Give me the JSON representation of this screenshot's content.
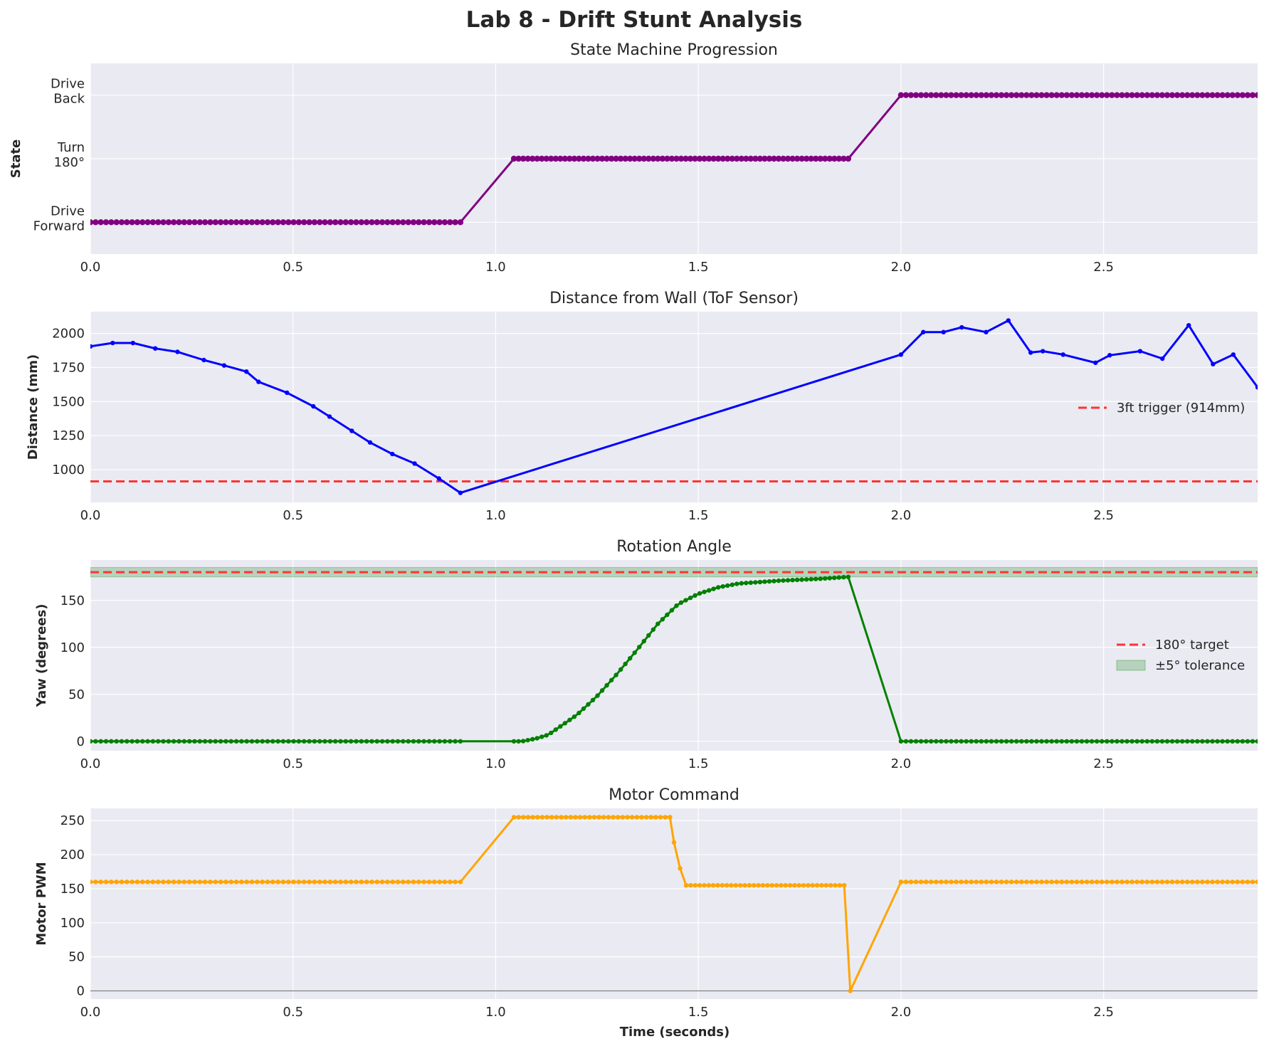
{
  "figure": {
    "title": "Lab 8 - Drift Stunt Analysis",
    "xlabel": "Time (seconds)"
  },
  "chart_data": [
    {
      "type": "line",
      "title": "State Machine Progression",
      "xlabel": "",
      "ylabel": "State",
      "xlim": [
        0,
        2.88
      ],
      "ylim": [
        -0.5,
        2.5
      ],
      "xticks": [
        0.0,
        0.5,
        1.0,
        1.5,
        2.0,
        2.5
      ],
      "xtick_labels": [
        "0.0",
        "0.5",
        "1.0",
        "1.5",
        "2.0",
        "2.5"
      ],
      "yticks": [
        0,
        1,
        2
      ],
      "ytick_labels": [
        [
          "Drive",
          "Forward"
        ],
        [
          "Turn",
          "180°"
        ],
        [
          "Drive",
          "Back"
        ]
      ],
      "grid": true,
      "color": "#800080",
      "series": [
        {
          "segments": [
            {
              "x_start": 0.0,
              "x_end": 0.913,
              "n": 72,
              "y": 0
            },
            {
              "x_start": 1.045,
              "x_end": 1.87,
              "n": 73,
              "y": 1
            },
            {
              "x_start": 2.0,
              "x_end": 2.88,
              "n": 72,
              "y": 2
            }
          ]
        }
      ]
    },
    {
      "type": "line",
      "title": "Distance from Wall (ToF Sensor)",
      "xlabel": "",
      "ylabel": "Distance (mm)",
      "xlim": [
        0,
        2.88
      ],
      "ylim": [
        760,
        2160
      ],
      "xticks": [
        0.0,
        0.5,
        1.0,
        1.5,
        2.0,
        2.5
      ],
      "xtick_labels": [
        "0.0",
        "0.5",
        "1.0",
        "1.5",
        "2.0",
        "2.5"
      ],
      "yticks": [
        1000,
        1250,
        1500,
        1750,
        2000
      ],
      "ytick_labels": [
        "1000",
        "1250",
        "1500",
        "1750",
        "2000"
      ],
      "grid": true,
      "legend": "center-right",
      "series": [
        {
          "color": "#0000ff",
          "x": [
            0.0,
            0.055,
            0.105,
            0.16,
            0.215,
            0.28,
            0.33,
            0.385,
            0.415,
            0.485,
            0.55,
            0.59,
            0.645,
            0.69,
            0.745,
            0.8,
            0.86,
            0.913,
            2.0,
            2.055,
            2.105,
            2.15,
            2.21,
            2.265,
            2.32,
            2.35,
            2.4,
            2.48,
            2.515,
            2.59,
            2.645,
            2.71,
            2.77,
            2.82,
            2.88
          ],
          "y": [
            1905,
            1930,
            1930,
            1890,
            1865,
            1805,
            1765,
            1720,
            1645,
            1565,
            1465,
            1390,
            1285,
            1200,
            1115,
            1045,
            935,
            830,
            1845,
            2010,
            2010,
            2045,
            2010,
            2095,
            1860,
            1870,
            1845,
            1785,
            1840,
            1870,
            1815,
            2060,
            1775,
            1845,
            1605
          ]
        },
        {
          "name": "3ft trigger (914mm)",
          "style": "dashed",
          "color": "#ff3333",
          "y": 914
        }
      ]
    },
    {
      "type": "line",
      "title": "Rotation Angle",
      "xlabel": "",
      "ylabel": "Yaw (degrees)",
      "xlim": [
        0,
        2.88
      ],
      "ylim": [
        -10,
        193
      ],
      "xticks": [
        0.0,
        0.5,
        1.0,
        1.5,
        2.0,
        2.5
      ],
      "xtick_labels": [
        "0.0",
        "0.5",
        "1.0",
        "1.5",
        "2.0",
        "2.5"
      ],
      "yticks": [
        0,
        50,
        100,
        150
      ],
      "ytick_labels": [
        "0",
        "50",
        "100",
        "150"
      ],
      "grid": true,
      "legend": "center-right",
      "series": [
        {
          "color": "#008000",
          "x": [
            0.0,
            0.913,
            1.045,
            1.065,
            1.1,
            1.13,
            1.16,
            1.2,
            1.25,
            1.3,
            1.35,
            1.4,
            1.45,
            1.5,
            1.55,
            1.6,
            1.7,
            1.8,
            1.87,
            2.0,
            2.88
          ],
          "y": [
            0,
            0,
            0,
            0,
            3,
            7,
            16,
            28,
            48,
            72,
            98,
            125,
            146,
            157,
            164,
            168,
            171,
            173,
            175,
            0,
            0
          ],
          "dense_segments": [
            {
              "x_start": 0.0,
              "x_end": 0.913,
              "n": 72
            },
            {
              "x_start": 1.045,
              "x_end": 1.87,
              "n": 73
            },
            {
              "x_start": 2.0,
              "x_end": 2.88,
              "n": 72
            }
          ]
        },
        {
          "name": "180° target",
          "style": "dashed",
          "color": "#ff3333",
          "y": 180
        },
        {
          "name": "±5° tolerance",
          "type": "band",
          "color": "#008000",
          "y_range": [
            175,
            185
          ]
        }
      ]
    },
    {
      "type": "line",
      "title": "Motor Command",
      "xlabel": "Time (seconds)",
      "ylabel": "Motor PWM",
      "xlim": [
        0,
        2.88
      ],
      "ylim": [
        -12,
        268
      ],
      "xticks": [
        0.0,
        0.5,
        1.0,
        1.5,
        2.0,
        2.5
      ],
      "xtick_labels": [
        "0.0",
        "0.5",
        "1.0",
        "1.5",
        "2.0",
        "2.5"
      ],
      "yticks": [
        0,
        50,
        100,
        150,
        200,
        250
      ],
      "ytick_labels": [
        "0",
        "50",
        "100",
        "150",
        "200",
        "250"
      ],
      "grid": true,
      "color": "#ffa500",
      "series": [
        {
          "color": "#ffa500",
          "segments": [
            {
              "x_start": 0.0,
              "x_end": 0.913,
              "n": 72,
              "y": 160
            },
            {
              "x_start": 1.045,
              "x_end": 1.43,
              "n": 34,
              "y": 255
            },
            {
              "x_start": 1.47,
              "x_end": 1.86,
              "n": 36,
              "y": 155
            },
            {
              "x_start": 2.0,
              "x_end": 2.88,
              "n": 72,
              "y": 160
            }
          ],
          "x": [
            1.43,
            1.44,
            1.455,
            1.47,
            1.86,
            1.875,
            2.0
          ],
          "y": [
            255,
            218,
            180,
            155,
            155,
            0,
            160
          ]
        },
        {
          "name": "zero line",
          "color": "#808080",
          "y": 0
        }
      ]
    }
  ]
}
